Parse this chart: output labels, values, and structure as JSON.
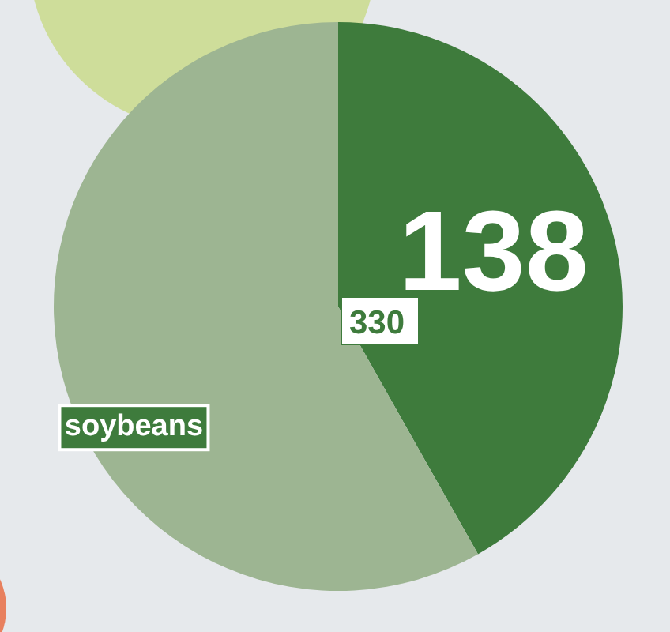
{
  "chart_data": {
    "type": "pie",
    "categories": [
      null,
      "soybeans"
    ],
    "values": [
      138,
      192
    ],
    "colors": [
      "#3e7b3c",
      "#9db592"
    ],
    "value_labels": [
      "138",
      null
    ],
    "annotations": [
      "330"
    ]
  }
}
